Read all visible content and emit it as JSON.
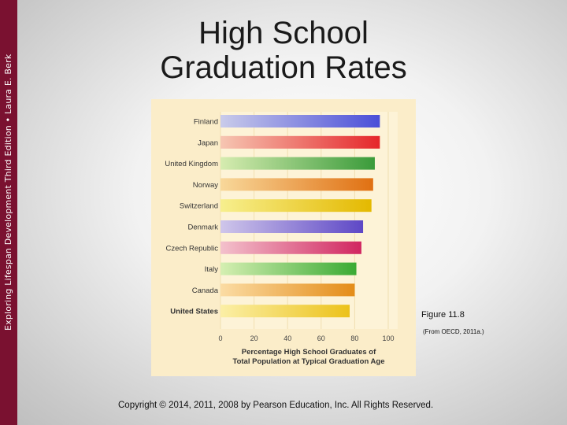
{
  "sidebar": {
    "text": "Exploring Lifespan Development Third Edition • Laura E. Berk"
  },
  "slide": {
    "title_line1": "High School",
    "title_line2": "Graduation Rates",
    "figure_label": "Figure 11.8",
    "figure_source": "(From OECD, 2011a.)",
    "copyright": "Copyright © 2014, 2011, 2008 by Pearson Education, Inc. All Rights Reserved."
  },
  "chart_data": {
    "type": "bar",
    "orientation": "horizontal",
    "categories": [
      "Finland",
      "Japan",
      "United Kingdom",
      "Norway",
      "Switzerland",
      "Denmark",
      "Czech Republic",
      "Italy",
      "Canada",
      "United States"
    ],
    "values": [
      95,
      95,
      92,
      91,
      90,
      85,
      84,
      81,
      80,
      77
    ],
    "xlabel_line1": "Percentage High School Graduates of",
    "xlabel_line2": "Total Population at Typical Graduation Age",
    "xlim": [
      0,
      100
    ],
    "xticks": [
      "0",
      "20",
      "40",
      "60",
      "80",
      "100"
    ],
    "grid": true,
    "bar_colors": [
      [
        "#c9cbea",
        "#4a4ed8"
      ],
      [
        "#f6c6b2",
        "#e5262a"
      ],
      [
        "#d6ecb0",
        "#3a9b3a"
      ],
      [
        "#f8d89a",
        "#e07012"
      ],
      [
        "#f7ef8e",
        "#e4b900"
      ],
      [
        "#cfc6ea",
        "#5e48c6"
      ],
      [
        "#f3c1cc",
        "#d12660"
      ],
      [
        "#d5efb2",
        "#3aaa34"
      ],
      [
        "#fbdca4",
        "#e48c18"
      ],
      [
        "#fbefa6",
        "#ecc21a"
      ]
    ]
  }
}
